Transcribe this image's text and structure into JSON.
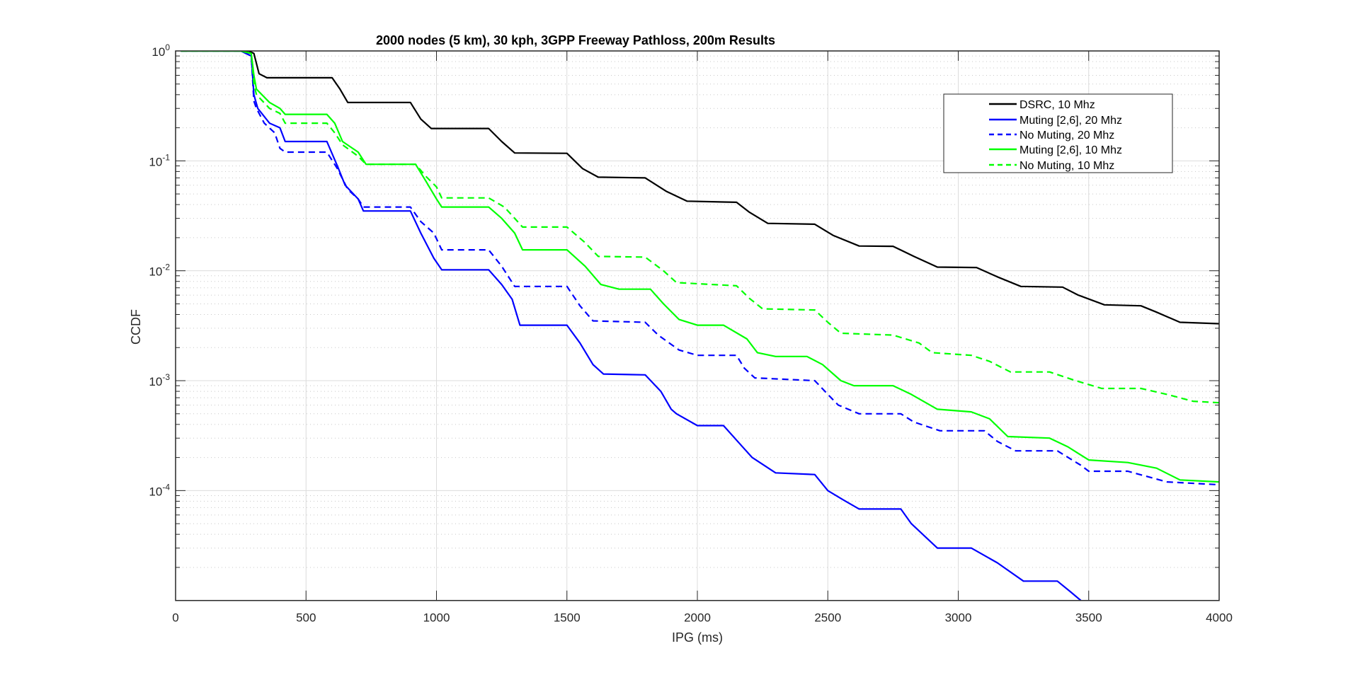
{
  "chart_data": {
    "type": "line",
    "title": "2000 nodes (5 km), 30 kph, 3GPP Freeway Pathloss, 200m Results",
    "xlabel": "IPG (ms)",
    "ylabel": "CCDF",
    "xlim": [
      0,
      4000
    ],
    "ylim": [
      1e-05,
      1
    ],
    "yscale": "log",
    "grid": true,
    "minor_grid": true,
    "legend_position": "top-right",
    "xticks": [
      0,
      500,
      1000,
      1500,
      2000,
      2500,
      3000,
      3500,
      4000
    ],
    "xtick_labels": [
      "0",
      "500",
      "1000",
      "1500",
      "2000",
      "2500",
      "3000",
      "3500",
      "4000"
    ],
    "yticks": [
      1,
      0.1,
      0.01,
      0.001,
      0.0001
    ],
    "ytick_labels": [
      {
        "base": "10",
        "exp": "0"
      },
      {
        "base": "10",
        "exp": "-1"
      },
      {
        "base": "10",
        "exp": "-2"
      },
      {
        "base": "10",
        "exp": "-3"
      },
      {
        "base": "10",
        "exp": "-4"
      }
    ],
    "series": [
      {
        "name": "DSRC, 10 Mhz",
        "color": "#000000",
        "dash": "solid",
        "x": [
          20,
          280,
          300,
          320,
          350,
          600,
          630,
          660,
          900,
          940,
          980,
          1200,
          1250,
          1300,
          1500,
          1560,
          1620,
          1800,
          1880,
          1960,
          2150,
          2200,
          2270,
          2450,
          2520,
          2620,
          2750,
          2830,
          2920,
          3070,
          3150,
          3240,
          3400,
          3460,
          3560,
          3700,
          3760,
          3850,
          4000
        ],
        "y": [
          1,
          1,
          0.95,
          0.62,
          0.57,
          0.57,
          0.45,
          0.34,
          0.34,
          0.24,
          0.197,
          0.197,
          0.15,
          0.118,
          0.117,
          0.085,
          0.071,
          0.07,
          0.053,
          0.043,
          0.042,
          0.034,
          0.027,
          0.0265,
          0.021,
          0.0168,
          0.0167,
          0.0135,
          0.0108,
          0.0107,
          0.0088,
          0.0072,
          0.0071,
          0.006,
          0.0049,
          0.0048,
          0.0042,
          0.0034,
          0.0033
        ]
      },
      {
        "name": "Muting [2,6], 20 Mhz",
        "color": "#0000ff",
        "dash": "solid",
        "x": [
          20,
          250,
          290,
          300,
          315,
          360,
          400,
          420,
          580,
          620,
          650,
          700,
          720,
          900,
          940,
          990,
          1020,
          1200,
          1250,
          1290,
          1320,
          1500,
          1550,
          1600,
          1640,
          1800,
          1860,
          1900,
          1920,
          2000,
          2100,
          2180,
          2210,
          2300,
          2450,
          2500,
          2560,
          2620,
          2780,
          2820,
          2920,
          3050,
          3150,
          3250,
          3380,
          3430,
          3470
        ],
        "y": [
          1,
          1,
          0.9,
          0.4,
          0.3,
          0.22,
          0.2,
          0.15,
          0.15,
          0.09,
          0.06,
          0.045,
          0.035,
          0.035,
          0.022,
          0.013,
          0.0102,
          0.0102,
          0.0075,
          0.0055,
          0.0032,
          0.0032,
          0.0022,
          0.0014,
          0.00115,
          0.00113,
          0.0008,
          0.00055,
          0.0005,
          0.00039,
          0.00039,
          0.00024,
          0.0002,
          0.000145,
          0.00014,
          0.0001,
          8.2e-05,
          6.8e-05,
          6.8e-05,
          5e-05,
          3e-05,
          3e-05,
          2.2e-05,
          1.5e-05,
          1.5e-05,
          1.2e-05,
          1e-05
        ]
      },
      {
        "name": "No Muting, 20 Mhz",
        "color": "#0000ff",
        "dash": "dashed",
        "x": [
          20,
          250,
          290,
          300,
          310,
          340,
          380,
          400,
          420,
          580,
          620,
          660,
          700,
          720,
          900,
          940,
          990,
          1020,
          1200,
          1250,
          1300,
          1500,
          1550,
          1600,
          1800,
          1850,
          1930,
          2000,
          2150,
          2180,
          2220,
          2450,
          2500,
          2540,
          2620,
          2780,
          2830,
          2930,
          3100,
          3150,
          3220,
          3380,
          3470,
          3500,
          3650,
          3800,
          4000
        ],
        "y": [
          1,
          1,
          0.9,
          0.35,
          0.3,
          0.22,
          0.18,
          0.13,
          0.12,
          0.12,
          0.085,
          0.055,
          0.045,
          0.038,
          0.038,
          0.028,
          0.022,
          0.0155,
          0.0155,
          0.011,
          0.0072,
          0.0072,
          0.0048,
          0.0035,
          0.0034,
          0.0026,
          0.0019,
          0.0017,
          0.0017,
          0.0013,
          0.00106,
          0.001,
          0.00075,
          0.0006,
          0.0005,
          0.0005,
          0.00042,
          0.00035,
          0.00035,
          0.00028,
          0.00023,
          0.00023,
          0.00017,
          0.00015,
          0.00015,
          0.00012,
          0.000113
        ]
      },
      {
        "name": "Muting [2,6], 10 Mhz",
        "color": "#00ff00",
        "dash": "solid",
        "x": [
          20,
          250,
          290,
          300,
          310,
          360,
          400,
          420,
          580,
          610,
          640,
          700,
          730,
          920,
          960,
          1000,
          1020,
          1200,
          1250,
          1300,
          1330,
          1500,
          1570,
          1630,
          1700,
          1820,
          1870,
          1930,
          2000,
          2100,
          2190,
          2230,
          2300,
          2420,
          2480,
          2550,
          2600,
          2750,
          2820,
          2920,
          3050,
          3120,
          3190,
          3350,
          3420,
          3500,
          3650,
          3760,
          3850,
          4000
        ],
        "y": [
          1,
          1,
          0.95,
          0.6,
          0.45,
          0.34,
          0.3,
          0.265,
          0.265,
          0.22,
          0.15,
          0.12,
          0.093,
          0.093,
          0.065,
          0.045,
          0.038,
          0.038,
          0.03,
          0.022,
          0.0155,
          0.0155,
          0.011,
          0.0075,
          0.0068,
          0.0068,
          0.005,
          0.0036,
          0.0032,
          0.0032,
          0.0024,
          0.0018,
          0.00166,
          0.00166,
          0.0014,
          0.001,
          0.0009,
          0.0009,
          0.00075,
          0.00055,
          0.00052,
          0.00045,
          0.00031,
          0.0003,
          0.00025,
          0.00019,
          0.00018,
          0.00016,
          0.000125,
          0.00012
        ]
      },
      {
        "name": "No Muting, 10 Mhz",
        "color": "#00ff00",
        "dash": "dashed",
        "x": [
          20,
          250,
          290,
          300,
          310,
          360,
          400,
          420,
          580,
          610,
          640,
          700,
          730,
          920,
          960,
          1000,
          1020,
          1200,
          1260,
          1300,
          1330,
          1500,
          1570,
          1620,
          1800,
          1870,
          1920,
          2150,
          2200,
          2250,
          2450,
          2500,
          2550,
          2750,
          2850,
          2900,
          3050,
          3120,
          3200,
          3350,
          3450,
          3550,
          3700,
          3800,
          3900,
          4000
        ],
        "y": [
          1,
          1,
          0.95,
          0.5,
          0.4,
          0.3,
          0.27,
          0.22,
          0.22,
          0.18,
          0.14,
          0.11,
          0.093,
          0.093,
          0.072,
          0.058,
          0.046,
          0.046,
          0.038,
          0.03,
          0.025,
          0.025,
          0.018,
          0.0135,
          0.0133,
          0.01,
          0.0078,
          0.0073,
          0.0056,
          0.0045,
          0.0044,
          0.0034,
          0.0027,
          0.0026,
          0.0022,
          0.0018,
          0.0017,
          0.0015,
          0.0012,
          0.0012,
          0.001,
          0.00085,
          0.00085,
          0.00075,
          0.00065,
          0.00063
        ]
      }
    ]
  }
}
